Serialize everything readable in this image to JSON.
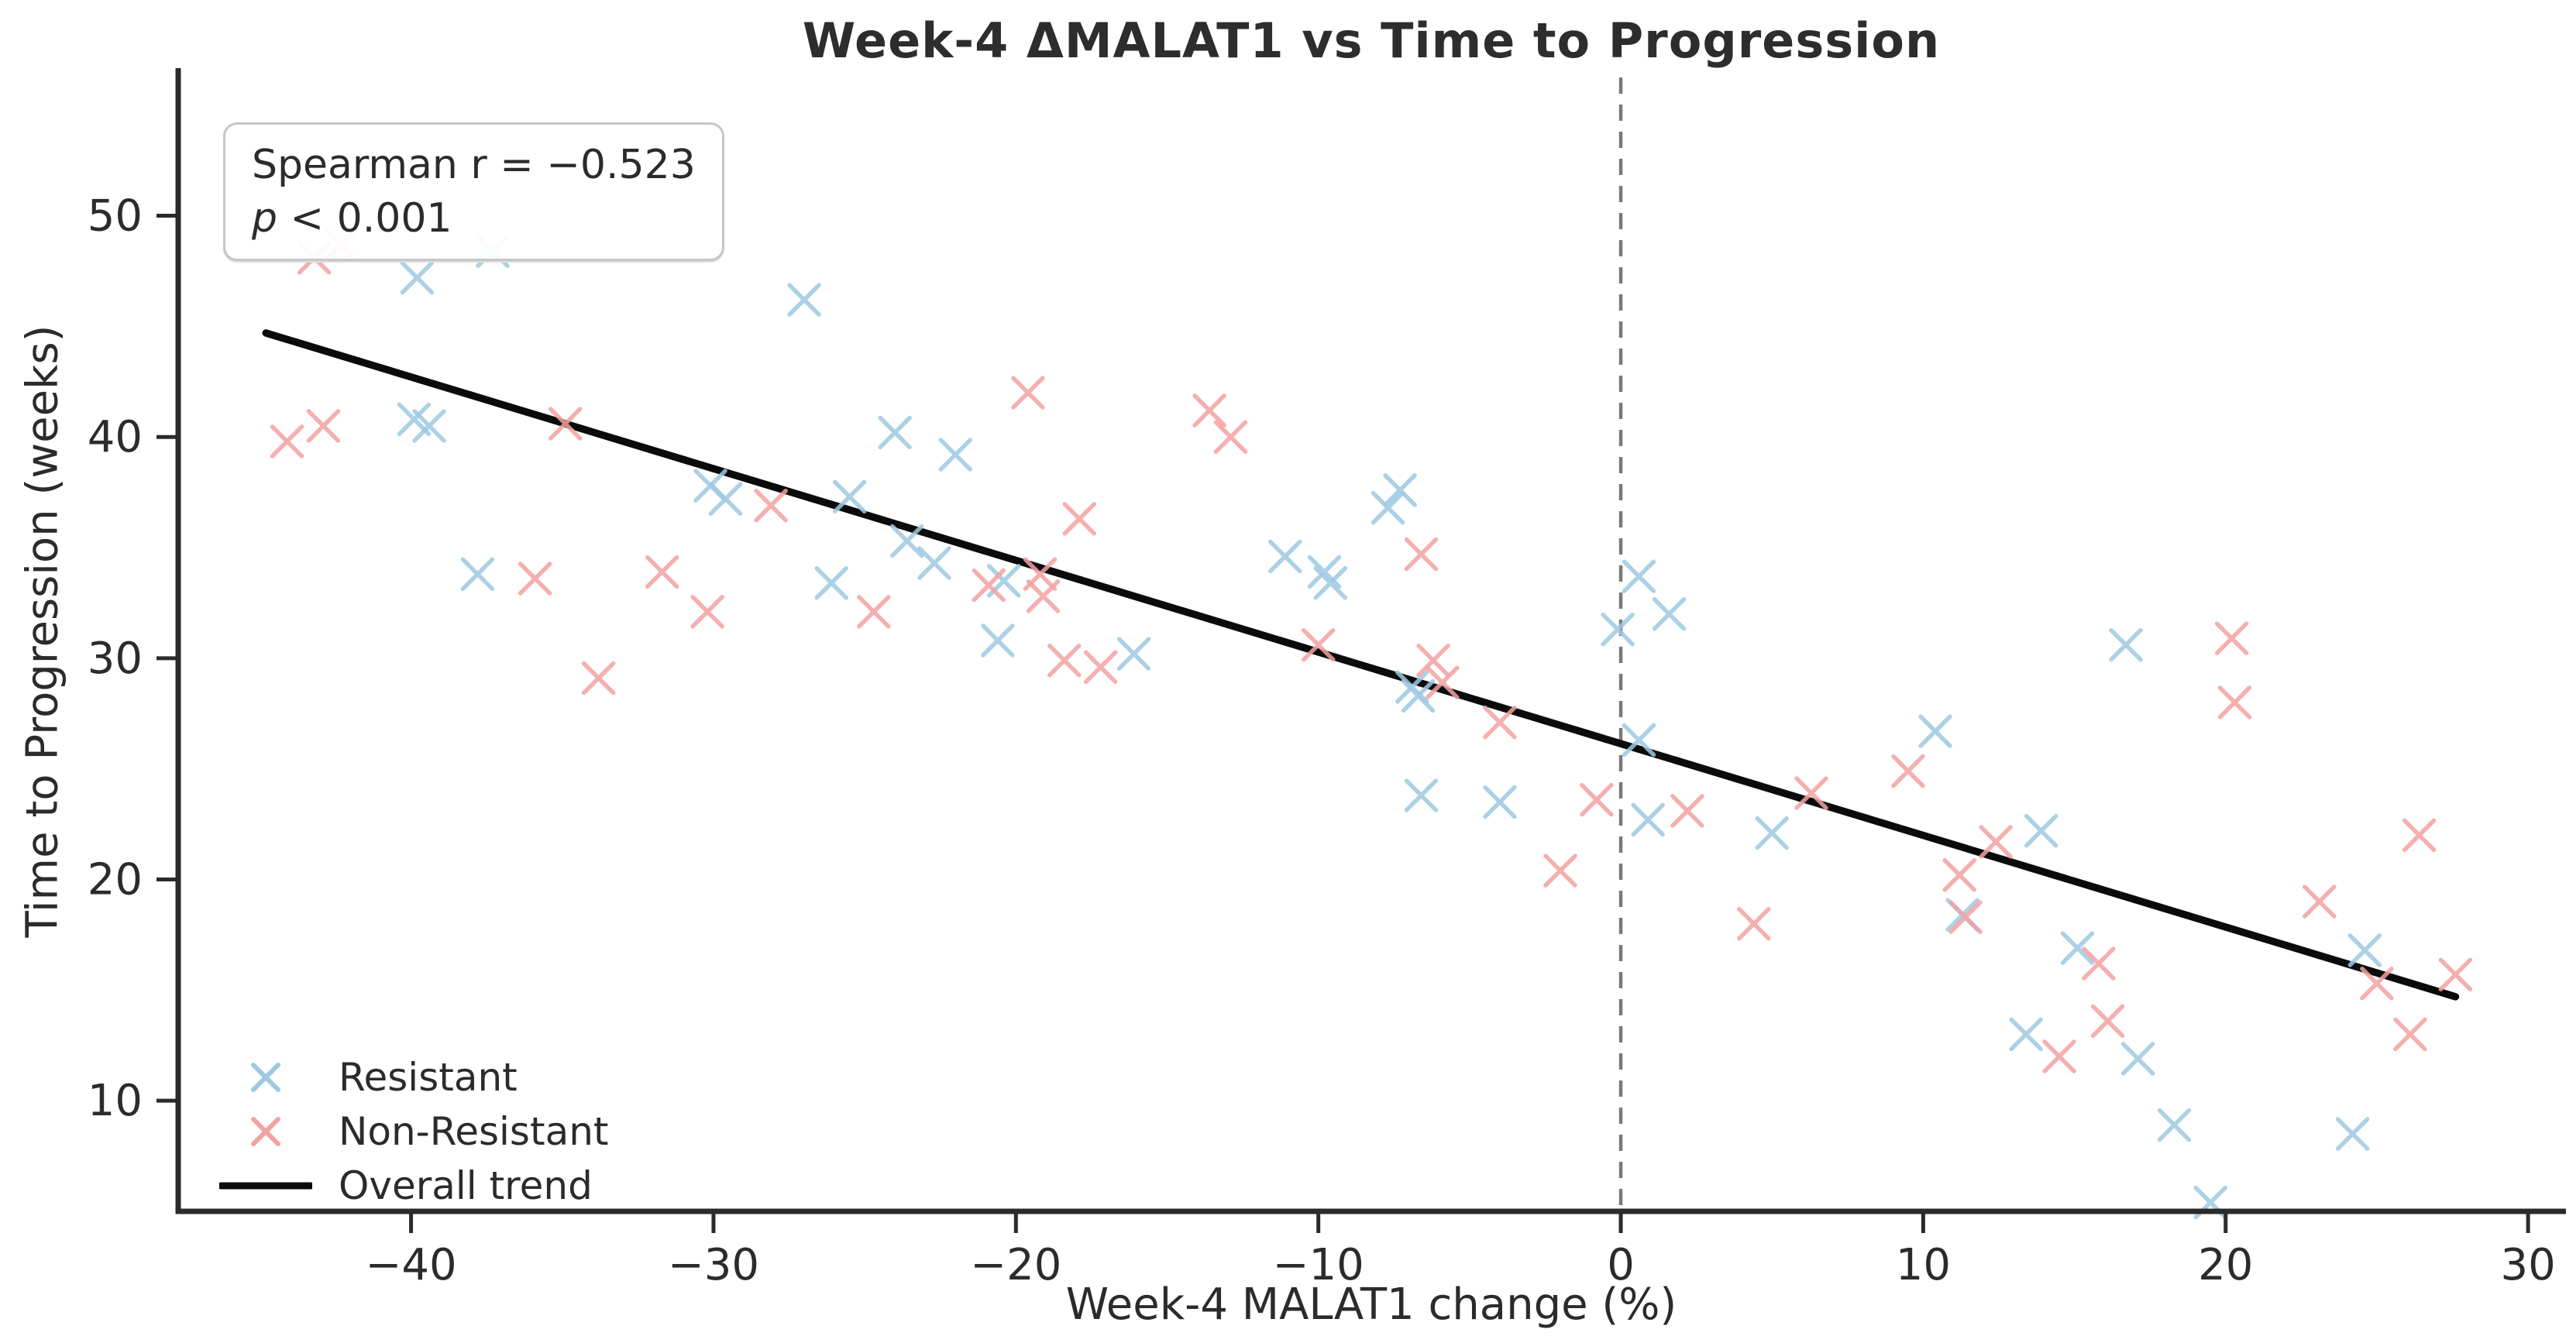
{
  "chart_data": {
    "type": "scatter",
    "title": "Week-4 ΔMALAT1 vs Time to Progression",
    "xlabel": "Week-4 MALAT1 change (%)",
    "ylabel": "Time to Progression (weeks)",
    "xlim": [
      -47.7,
      31.2
    ],
    "ylim": [
      5.0,
      56.6
    ],
    "xticks": [
      -40,
      -30,
      -20,
      -10,
      0,
      10,
      20,
      30
    ],
    "yticks": [
      10,
      20,
      30,
      40,
      50
    ],
    "grid": false,
    "legend_position": "lower-left",
    "vline_x": 0,
    "annotation": {
      "line1": "Spearman r = −0.523",
      "p_label": "p",
      "p_value": " < 0.001"
    },
    "series": [
      {
        "name": "Resistant",
        "marker": "x",
        "color": "#9ec9e2",
        "points": [
          [
            -39.8,
            47.2
          ],
          [
            -37.3,
            48.4
          ],
          [
            -27.0,
            46.2
          ],
          [
            -39.9,
            40.8
          ],
          [
            -39.4,
            40.5
          ],
          [
            -30.1,
            37.8
          ],
          [
            -29.6,
            37.2
          ],
          [
            -25.5,
            37.3
          ],
          [
            -24.0,
            40.2
          ],
          [
            -22.0,
            39.2
          ],
          [
            -37.8,
            33.8
          ],
          [
            -26.1,
            33.4
          ],
          [
            -23.6,
            35.3
          ],
          [
            -22.7,
            34.3
          ],
          [
            -20.4,
            33.5
          ],
          [
            -20.6,
            30.8
          ],
          [
            -16.1,
            30.2
          ],
          [
            -11.1,
            34.6
          ],
          [
            -9.8,
            33.9
          ],
          [
            -9.6,
            33.4
          ],
          [
            -7.3,
            37.6
          ],
          [
            -7.7,
            36.8
          ],
          [
            -6.9,
            28.7
          ],
          [
            -6.7,
            28.3
          ],
          [
            0.6,
            33.7
          ],
          [
            1.6,
            32.0
          ],
          [
            -0.1,
            31.3
          ],
          [
            0.6,
            26.3
          ],
          [
            0.9,
            22.7
          ],
          [
            -4.0,
            23.5
          ],
          [
            -6.6,
            23.8
          ],
          [
            5.0,
            22.1
          ],
          [
            10.4,
            26.7
          ],
          [
            13.9,
            22.2
          ],
          [
            11.3,
            18.4
          ],
          [
            15.1,
            16.9
          ],
          [
            13.4,
            13.0
          ],
          [
            17.1,
            11.9
          ],
          [
            16.7,
            30.6
          ],
          [
            18.3,
            8.9
          ],
          [
            24.2,
            8.5
          ],
          [
            19.5,
            5.4
          ],
          [
            24.6,
            16.8
          ]
        ]
      },
      {
        "name": "Non-Resistant",
        "marker": "x",
        "color": "#f3a1a1",
        "points": [
          [
            -43.2,
            48.1
          ],
          [
            -42.3,
            48.7
          ],
          [
            -44.1,
            39.8
          ],
          [
            -42.9,
            40.5
          ],
          [
            -34.9,
            40.6
          ],
          [
            -35.9,
            33.6
          ],
          [
            -31.7,
            33.9
          ],
          [
            -30.2,
            32.1
          ],
          [
            -33.8,
            29.1
          ],
          [
            -28.1,
            36.9
          ],
          [
            -24.7,
            32.1
          ],
          [
            -20.9,
            33.3
          ],
          [
            -19.2,
            33.8
          ],
          [
            -19.1,
            32.8
          ],
          [
            -19.6,
            42.0
          ],
          [
            -17.9,
            36.3
          ],
          [
            -13.6,
            41.2
          ],
          [
            -12.9,
            40.0
          ],
          [
            -18.4,
            29.9
          ],
          [
            -17.2,
            29.6
          ],
          [
            -10.0,
            30.6
          ],
          [
            -6.2,
            29.9
          ],
          [
            -5.9,
            28.9
          ],
          [
            -6.6,
            34.7
          ],
          [
            -4.0,
            27.1
          ],
          [
            -0.8,
            23.6
          ],
          [
            -2.0,
            20.4
          ],
          [
            2.2,
            23.1
          ],
          [
            6.3,
            23.9
          ],
          [
            4.4,
            18.0
          ],
          [
            9.5,
            24.9
          ],
          [
            11.2,
            20.2
          ],
          [
            11.4,
            18.3
          ],
          [
            12.4,
            21.7
          ],
          [
            16.1,
            13.6
          ],
          [
            15.8,
            16.2
          ],
          [
            14.5,
            12.0
          ],
          [
            20.2,
            30.9
          ],
          [
            20.3,
            28.0
          ],
          [
            23.1,
            19.0
          ],
          [
            26.4,
            22.0
          ],
          [
            25.0,
            15.3
          ],
          [
            27.6,
            15.7
          ],
          [
            26.1,
            13.0
          ]
        ]
      }
    ],
    "trend": {
      "name": "Overall trend",
      "color": "#0b0b0b",
      "x": [
        -44.8,
        27.6
      ],
      "y": [
        44.7,
        14.7
      ]
    }
  }
}
